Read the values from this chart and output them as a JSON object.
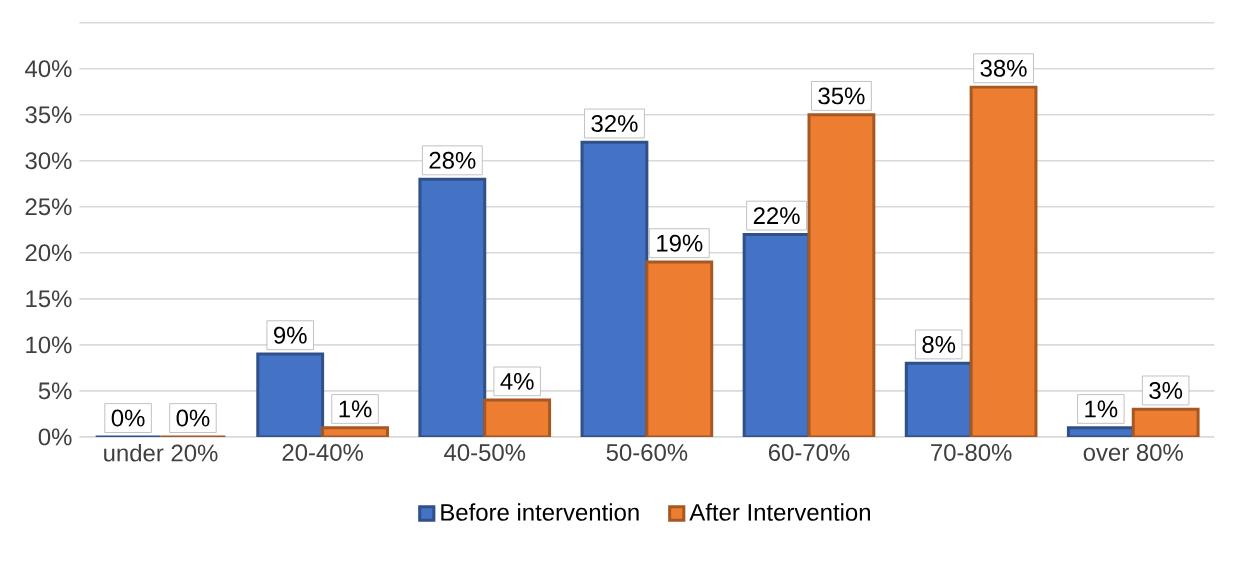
{
  "chart_data": {
    "type": "bar",
    "categories": [
      "under 20%",
      "20-40%",
      "40-50%",
      "50-60%",
      "60-70%",
      "70-80%",
      "over 80%"
    ],
    "series": [
      {
        "name": "Before intervention",
        "color": "#4472c4",
        "values": [
          0,
          9,
          28,
          32,
          22,
          8,
          1
        ],
        "value_labels": [
          "0%",
          "9%",
          "28%",
          "32%",
          "22%",
          "8%",
          "1%"
        ]
      },
      {
        "name": "After Intervention",
        "color": "#ed7d31",
        "values": [
          0,
          1,
          4,
          19,
          35,
          38,
          3
        ],
        "value_labels": [
          "0%",
          "1%",
          "4%",
          "19%",
          "35%",
          "38%",
          "3%"
        ]
      }
    ],
    "ylim": [
      0,
      45
    ],
    "yticks": [
      {
        "value": 0,
        "label": "0%"
      },
      {
        "value": 5,
        "label": "5%"
      },
      {
        "value": 10,
        "label": "10%"
      },
      {
        "value": 15,
        "label": "15%"
      },
      {
        "value": 20,
        "label": "20%"
      },
      {
        "value": 25,
        "label": "25%"
      },
      {
        "value": 30,
        "label": "30%"
      },
      {
        "value": 35,
        "label": "35%"
      },
      {
        "value": 40,
        "label": "40%"
      },
      {
        "value": 45,
        "label": null
      }
    ],
    "grid": "y",
    "legend": "bottom"
  }
}
